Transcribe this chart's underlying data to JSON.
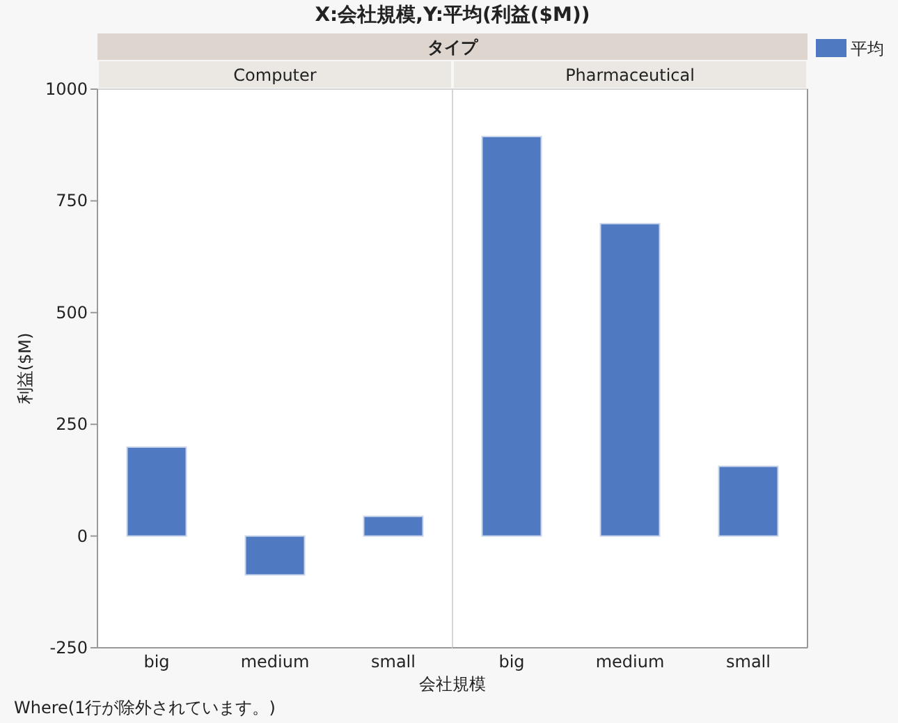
{
  "chart_data": [
    {
      "type": "bar",
      "title": "Computer",
      "categories": [
        "big",
        "medium",
        "small"
      ],
      "values": [
        199,
        -87,
        44
      ],
      "color": "#4f79c1",
      "ylim": [
        -250,
        1000
      ],
      "yticks": [
        -250,
        0,
        250,
        500,
        750,
        1000
      ],
      "grid": false,
      "ylabel": "利益($M)",
      "xlabel": "会社規模",
      "annotations": [
        "X:会社規模,Y:平均(利益($M))",
        "タイプ",
        "Where(1行が除外されています。)"
      ]
    },
    {
      "type": "bar",
      "title": "Pharmaceutical",
      "categories": [
        "big",
        "medium",
        "small"
      ],
      "series": [
        {
          "name": "平均",
          "color": "#4f79c1",
          "values": [
            894,
            699,
            156
          ]
        }
      ],
      "ylim": [
        -250,
        1000
      ],
      "yticks": [
        -250,
        0,
        250,
        500,
        750,
        1000
      ],
      "grid": false,
      "tick_labels": "x",
      "legend": "top right"
    }
  ]
}
